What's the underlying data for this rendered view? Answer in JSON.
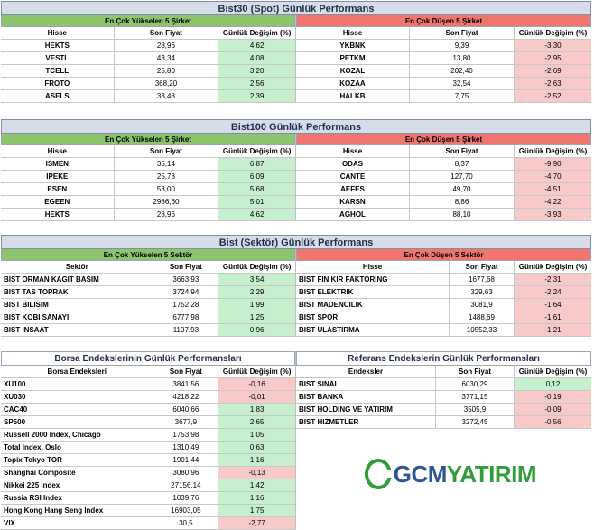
{
  "bist30": {
    "title": "Bist30 (Spot) Günlük Performans",
    "left": {
      "subtitle": "En Çok Yükselen 5 Şirket",
      "headers": [
        "Hisse",
        "Son Fiyat",
        "Günlük Değişim (%)"
      ],
      "rows": [
        [
          "HEKTS",
          "28,96",
          "4,62"
        ],
        [
          "VESTL",
          "43,34",
          "4,08"
        ],
        [
          "TCELL",
          "25,80",
          "3,20"
        ],
        [
          "FROTO",
          "368,20",
          "2,56"
        ],
        [
          "ASELS",
          "33,48",
          "2,39"
        ]
      ]
    },
    "right": {
      "subtitle": "En Çok Düşen 5 Şirket",
      "headers": [
        "Hisse",
        "Son Fiyat",
        "Günlük Değişim (%)"
      ],
      "rows": [
        [
          "YKBNK",
          "9,39",
          "-3,30"
        ],
        [
          "PETKM",
          "13,80",
          "-2,95"
        ],
        [
          "KOZAL",
          "202,40",
          "-2,69"
        ],
        [
          "KOZAA",
          "32,54",
          "-2,63"
        ],
        [
          "HALKB",
          "7,75",
          "-2,52"
        ]
      ]
    }
  },
  "bist100": {
    "title": "Bist100 Günlük Performans",
    "left": {
      "subtitle": "En Çok Yükselen 5 Şirket",
      "headers": [
        "Hisse",
        "Son Fiyat",
        "Günlük Değişim (%)"
      ],
      "rows": [
        [
          "ISMEN",
          "35,14",
          "6,87"
        ],
        [
          "IPEKE",
          "25,78",
          "6,09"
        ],
        [
          "ESEN",
          "53,00",
          "5,68"
        ],
        [
          "EGEEN",
          "2986,60",
          "5,01"
        ],
        [
          "HEKTS",
          "28,96",
          "4,62"
        ]
      ]
    },
    "right": {
      "subtitle": "En Çok Düşen 5 Şirket",
      "headers": [
        "Hisse",
        "Son Fiyat",
        "Günlük Değişim (%)"
      ],
      "rows": [
        [
          "ODAS",
          "8,37",
          "-9,90"
        ],
        [
          "CANTE",
          "127,70",
          "-4,70"
        ],
        [
          "AEFES",
          "49,70",
          "-4,51"
        ],
        [
          "KARSN",
          "8,86",
          "-4,22"
        ],
        [
          "AGHOL",
          "88,10",
          "-3,93"
        ]
      ]
    }
  },
  "sector": {
    "title": "Bist (Sektör) Günlük Performans",
    "left": {
      "subtitle": "En Çok Yükselen 5 Sektör",
      "headers": [
        "Sektör",
        "Son Fiyat",
        "Günlük Değişim (%)"
      ],
      "rows": [
        [
          "BIST ORMAN KAGIT BASIM",
          "3663,93",
          "3,54"
        ],
        [
          "BIST TAS TOPRAK",
          "3724,94",
          "2,29"
        ],
        [
          "BIST BILISIM",
          "1752,28",
          "1,99"
        ],
        [
          "BIST KOBI SANAYI",
          "6777,98",
          "1,25"
        ],
        [
          "BIST INSAAT",
          "1107,93",
          "0,96"
        ]
      ]
    },
    "right": {
      "subtitle": "En Çok Düşen 5 Sektör",
      "headers": [
        "Hisse",
        "Son Fiyat",
        "Günlük Değişim (%)"
      ],
      "rows": [
        [
          "BIST FIN KIR FAKTORING",
          "1677,68",
          "-2,31"
        ],
        [
          "BIST ELEKTRIK",
          "329,63",
          "-2,24"
        ],
        [
          "BIST MADENCILIK",
          "3081,9",
          "-1,64"
        ],
        [
          "BIST SPOR",
          "1488,69",
          "-1,61"
        ],
        [
          "BIST ULASTIRMA",
          "10552,33",
          "-1,21"
        ]
      ]
    }
  },
  "indices": {
    "left": {
      "title": "Borsa Endekslerinin Günlük Performansları",
      "headers": [
        "Borsa Endeksleri",
        "Son Fiyat",
        "Günlük Değişim (%)"
      ],
      "rows": [
        [
          "XU100",
          "3841,56",
          "-0,16"
        ],
        [
          "XU030",
          "4218,22",
          "-0,01"
        ],
        [
          "CAC40",
          "6040,66",
          "1,83"
        ],
        [
          "SP500",
          "3677,9",
          "2,65"
        ],
        [
          "Russell 2000 Index, Chicago",
          "1753,98",
          "1,05"
        ],
        [
          "Total Index, Oslo",
          "1310,49",
          "0,63"
        ],
        [
          "Topix Tokyo TOR",
          "1901,44",
          "1,16"
        ],
        [
          "Shanghai Composite",
          "3080,96",
          "-0,13"
        ],
        [
          "Nikkei 225 Index",
          "27156,14",
          "1,42"
        ],
        [
          "Russia RSI Index",
          "1039,76",
          "1,16"
        ],
        [
          "Hong Kong Hang Seng Index",
          "16903,05",
          "1,75"
        ],
        [
          "VIX",
          "30,5",
          "-2,77"
        ]
      ]
    },
    "right": {
      "title": "Referans Endekslerin  Günlük Performansları",
      "headers": [
        "Endeksler",
        "Son Fiyat",
        "Günlük Değişim (%)"
      ],
      "rows": [
        [
          "BIST SINAI",
          "6030,29",
          "0,12"
        ],
        [
          "BIST BANKA",
          "3771,15",
          "-0,19"
        ],
        [
          "BIST HOLDING VE YATIRIM",
          "3505,9",
          "-0,09"
        ],
        [
          "BIST HIZMETLER",
          "3272,45",
          "-0,56"
        ]
      ]
    }
  },
  "logo": {
    "part1": "GCM",
    "part2": "YATIRIM",
    "primary": "#2f5597",
    "accent": "#2f9e3a"
  },
  "colors": {
    "up": "#c6efce",
    "down": "#f8c9c9",
    "green_header": "#8cc56e",
    "red_header": "#f0756f"
  }
}
